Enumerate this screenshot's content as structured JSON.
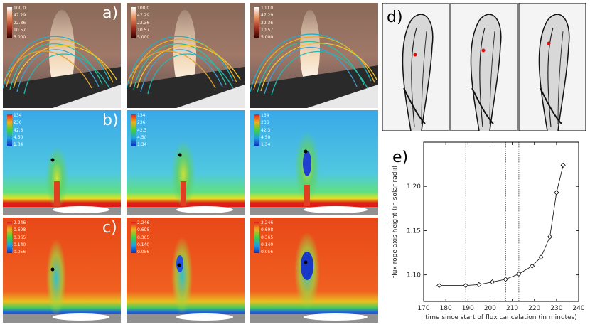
{
  "labels": {
    "a": "a)",
    "b": "b)",
    "c": "c)",
    "d": "d)",
    "e": "e)"
  },
  "colorbars": {
    "a": [
      "100.0",
      "47.29",
      "22.36",
      "10.57",
      "5.000"
    ],
    "b": [
      "134",
      "236",
      "42.3",
      "4.50",
      "1.34"
    ],
    "c": [
      "2.246",
      "0.698",
      "0.365",
      "0.140",
      "0.056"
    ]
  },
  "chart_data": {
    "type": "line",
    "xlabel": "time since start of flux cancelation (in minutes)",
    "ylabel": "flux rope axis height (in solar radii)",
    "xlim": [
      170,
      240
    ],
    "ylim": [
      1.07,
      1.25
    ],
    "xticks": [
      "170",
      "180",
      "190",
      "200",
      "210",
      "220",
      "230",
      "240"
    ],
    "yticks": [
      "1.10",
      "1.15",
      "1.20"
    ],
    "vlines": [
      189,
      207,
      213
    ],
    "series": [
      {
        "marker": "diamond",
        "x": [
          177,
          189,
          195,
          201,
          207,
          213,
          219,
          223,
          227,
          230,
          233
        ],
        "y": [
          1.088,
          1.088,
          1.089,
          1.092,
          1.095,
          1.101,
          1.11,
          1.12,
          1.143,
          1.193,
          1.224
        ]
      }
    ]
  }
}
